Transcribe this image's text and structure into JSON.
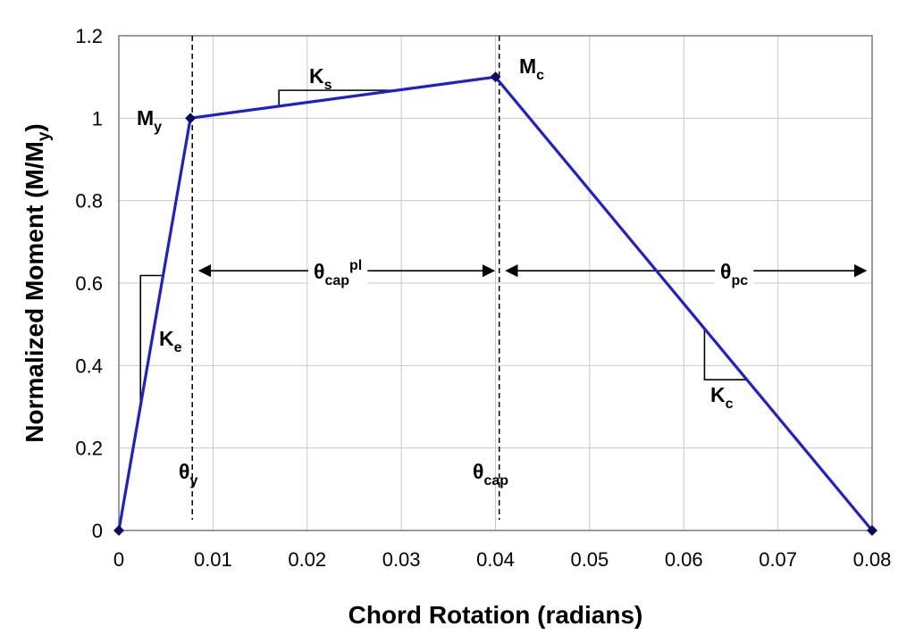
{
  "chart_data": {
    "type": "line",
    "title": "",
    "xlabel": "Chord Rotation (radians)",
    "ylabel": {
      "main": "Normalized Moment (M/M",
      "sub": "y",
      "end": ")"
    },
    "xlim": [
      0,
      0.08
    ],
    "ylim": [
      0,
      1.2
    ],
    "x_ticks": [
      0,
      0.01,
      0.02,
      0.03,
      0.04,
      0.05,
      0.06,
      0.07,
      0.08
    ],
    "x_tick_labels": [
      "0",
      "0.01",
      "0.02",
      "0.03",
      "0.04",
      "0.05",
      "0.06",
      "0.07",
      "0.08"
    ],
    "y_ticks": [
      0,
      0.2,
      0.4,
      0.6,
      0.8,
      1.0,
      1.2
    ],
    "y_tick_labels": [
      "0",
      "0.2",
      "0.4",
      "0.6",
      "0.8",
      "1",
      "1.2"
    ],
    "grid": true,
    "legend": "none",
    "series": [
      {
        "color": "#1f1fd0",
        "marker_color": "#0a0a60",
        "points": [
          [
            0,
            0
          ],
          [
            0.0076,
            1.0
          ],
          [
            0.04,
            1.1
          ],
          [
            0.08,
            0.0
          ]
        ]
      }
    ],
    "point_labels": [
      {
        "main": "M",
        "sub": "y",
        "x": 0.0076,
        "y": 1.0
      },
      {
        "main": "M",
        "sub": "c",
        "x": 0.04,
        "y": 1.1
      }
    ],
    "reference_lines": [
      {
        "x": 0.0078,
        "label": {
          "main": "θ",
          "sub": "y"
        }
      },
      {
        "x": 0.0404,
        "label": {
          "main": "θ",
          "sub": "cap"
        }
      }
    ],
    "spans": [
      {
        "x_from": 0.0078,
        "x_to": 0.0404,
        "y": 0.63,
        "label": {
          "main": "θ",
          "sub": "cap",
          "sup": "pl"
        }
      },
      {
        "x_from": 0.0404,
        "x_to": 0.0799,
        "y": 0.63,
        "label": {
          "main": "θ",
          "sub": "pc"
        }
      }
    ],
    "slope_labels": [
      {
        "main": "K",
        "sub": "e"
      },
      {
        "main": "K",
        "sub": "s"
      },
      {
        "main": "K",
        "sub": "c"
      }
    ]
  }
}
